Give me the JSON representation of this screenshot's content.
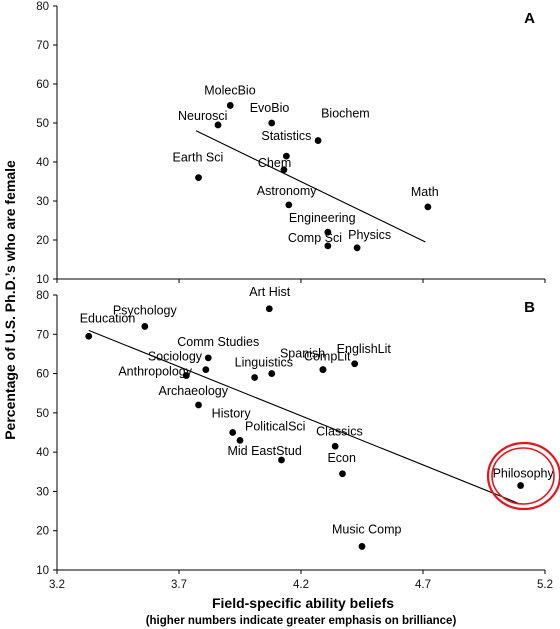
{
  "chart_data": {
    "type": "scatter",
    "ylabel": "Percentage of U.S. Ph.D.’s who are female",
    "xlabel": "Field-specific ability beliefs",
    "xlabel_sub": "(higher numbers indicate greater emphasis on brilliance)",
    "x_ticks": [
      "3.2",
      "3.7",
      "4.2",
      "4.7",
      "5.2"
    ],
    "highlight_color": "#e8141c",
    "panels": [
      {
        "letter": "A",
        "xlim": [
          3.2,
          5.2
        ],
        "ylim": [
          10,
          80
        ],
        "y_ticks": [
          "10",
          "20",
          "30",
          "40",
          "50",
          "60",
          "70",
          "80"
        ],
        "trendline": {
          "x": [
            3.77,
            4.71
          ],
          "y": [
            48.0,
            19.5
          ]
        },
        "points": [
          {
            "label": "MolecBio",
            "x": 3.91,
            "y": 54.5
          },
          {
            "label": "EvoBio",
            "x": 4.08,
            "y": 50.0
          },
          {
            "label": "Neurosci",
            "x": 3.86,
            "y": 49.5
          },
          {
            "label": "Biochem",
            "x": 4.27,
            "y": 45.5
          },
          {
            "label": "Statistics",
            "x": 4.14,
            "y": 41.5
          },
          {
            "label": "Chem",
            "x": 4.13,
            "y": 38.0
          },
          {
            "label": "Earth Sci",
            "x": 3.78,
            "y": 36.0
          },
          {
            "label": "Astronomy",
            "x": 4.15,
            "y": 29.0
          },
          {
            "label": "Math",
            "x": 4.72,
            "y": 28.5
          },
          {
            "label": "Engineering",
            "x": 4.31,
            "y": 22.0
          },
          {
            "label": "Comp Sci",
            "x": 4.31,
            "y": 18.5
          },
          {
            "label": "Physics",
            "x": 4.43,
            "y": 18.0
          }
        ]
      },
      {
        "letter": "B",
        "xlim": [
          3.2,
          5.2
        ],
        "ylim": [
          10,
          80
        ],
        "y_ticks": [
          "10",
          "20",
          "30",
          "40",
          "50",
          "60",
          "70",
          "80"
        ],
        "trendline": {
          "x": [
            3.33,
            5.09
          ],
          "y": [
            71.0,
            27.0
          ]
        },
        "points": [
          {
            "label": "Art Hist",
            "x": 4.07,
            "y": 76.5
          },
          {
            "label": "Psychology",
            "x": 3.56,
            "y": 72.0
          },
          {
            "label": "Education",
            "x": 3.33,
            "y": 69.5
          },
          {
            "label": "Comm Studies",
            "x": 3.82,
            "y": 64.0
          },
          {
            "label": "EnglishLit",
            "x": 4.42,
            "y": 62.5
          },
          {
            "label": "Spanish",
            "x": 4.29,
            "y": 61.0
          },
          {
            "label": "Sociology",
            "x": 3.81,
            "y": 61.0
          },
          {
            "label": "CompLit",
            "x": 4.29,
            "y": 61.0
          },
          {
            "label": "Linguistics",
            "x": 4.01,
            "y": 59.0
          },
          {
            "label": "Linguistics",
            "x": 4.08,
            "y": 60.0
          },
          {
            "label": "Anthropology",
            "x": 3.73,
            "y": 59.5
          },
          {
            "label": "Archaeology",
            "x": 3.78,
            "y": 52.0
          },
          {
            "label": "History",
            "x": 3.92,
            "y": 45.0
          },
          {
            "label": "PoliticalSci",
            "x": 3.95,
            "y": 43.0
          },
          {
            "label": "Classics",
            "x": 4.34,
            "y": 41.5
          },
          {
            "label": "Mid EastStud",
            "x": 4.12,
            "y": 38.0
          },
          {
            "label": "Econ",
            "x": 4.37,
            "y": 34.5
          },
          {
            "label": "Philosophy",
            "x": 5.1,
            "y": 31.5
          },
          {
            "label": "Music Comp",
            "x": 4.45,
            "y": 16.0
          }
        ]
      }
    ]
  }
}
